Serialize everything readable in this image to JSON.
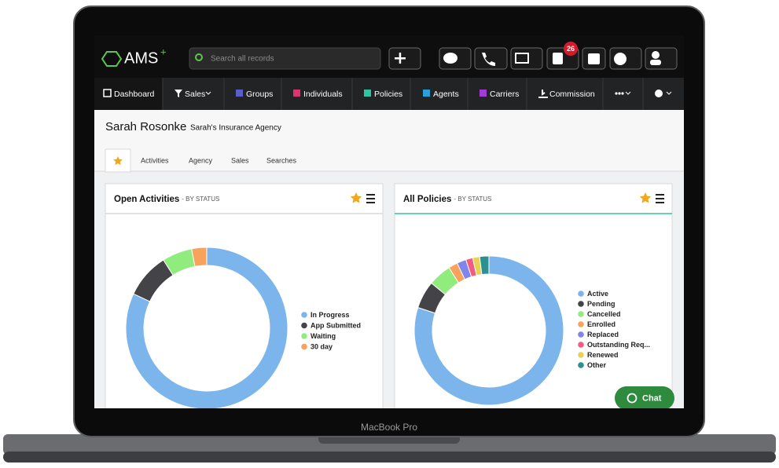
{
  "app": {
    "logo": "AMS",
    "search_placeholder": "Search all records",
    "badge": "26",
    "chat": "Chat",
    "device_label": "MacBook Pro"
  },
  "nav": [
    "Dashboard",
    "Sales",
    "Groups",
    "Individuals",
    "Policies",
    "Agents",
    "Carriers",
    "Commission"
  ],
  "header": {
    "name": "Sarah Rosonke",
    "agency": "Sarah's Insurance Agency"
  },
  "tabs": [
    "Activities",
    "Agency",
    "Sales",
    "Searches"
  ],
  "chart_data": [
    {
      "type": "pie",
      "title": "Open Activities",
      "subtitle": "- BY STATUS",
      "categories": [
        "In Progress",
        "App Submitted",
        "Waiting",
        "30 day"
      ],
      "values": [
        82,
        9,
        6,
        3
      ],
      "colors": [
        "#7cb5ec",
        "#434348",
        "#90ed7d",
        "#f7a35c"
      ]
    },
    {
      "type": "pie",
      "title": "All Policies",
      "subtitle": "- BY STATUS",
      "categories": [
        "Active",
        "Pending",
        "Cancelled",
        "Enrolled",
        "Replaced",
        "Outstanding Req...",
        "Renewed",
        "Other"
      ],
      "values": [
        80,
        6,
        5,
        2,
        2,
        1.5,
        1.5,
        2
      ],
      "colors": [
        "#7cb5ec",
        "#434348",
        "#90ed7d",
        "#f7a35c",
        "#8085e9",
        "#f15c80",
        "#e4d354",
        "#2b908f"
      ]
    }
  ]
}
